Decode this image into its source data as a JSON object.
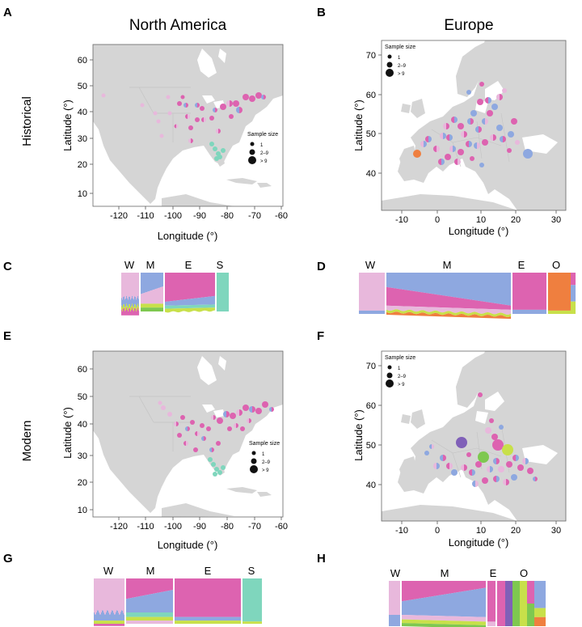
{
  "columns": {
    "left": "North America",
    "right": "Europe"
  },
  "rows": {
    "historical": "Historical",
    "modern": "Modern"
  },
  "panels": {
    "A": {
      "letter": "A",
      "xlabel": "Longitude (°)",
      "ylabel": "Latitude (°)",
      "xticks": [
        "-120",
        "-110",
        "-100",
        "-90",
        "-80",
        "-70",
        "-60"
      ],
      "yticks": [
        "60",
        "50",
        "40",
        "30",
        "20",
        "10"
      ],
      "legend": {
        "title": "Sample size",
        "items": [
          "1",
          "2–9",
          "> 9"
        ]
      }
    },
    "B": {
      "letter": "B",
      "xlabel": "Longitude (°)",
      "ylabel": "Latitude (°)",
      "xticks": [
        "-10",
        "0",
        "10",
        "20",
        "30"
      ],
      "yticks": [
        "70",
        "60",
        "50",
        "40"
      ],
      "legend": {
        "title": "Sample size",
        "items": [
          "1",
          "2–9",
          "> 9"
        ]
      }
    },
    "C": {
      "letter": "C",
      "groups": [
        "W",
        "M",
        "E",
        "S"
      ]
    },
    "D": {
      "letter": "D",
      "groups": [
        "W",
        "M",
        "E",
        "O"
      ]
    },
    "E": {
      "letter": "E",
      "xlabel": "Longitude (°)",
      "ylabel": "Latitude (°)",
      "xticks": [
        "-120",
        "-110",
        "-100",
        "-90",
        "-80",
        "-70",
        "-60"
      ],
      "yticks": [
        "60",
        "50",
        "40",
        "30",
        "20",
        "10"
      ],
      "legend": {
        "title": "Sample size",
        "items": [
          "1",
          "2–9",
          "> 9"
        ]
      }
    },
    "F": {
      "letter": "F",
      "xlabel": "Longitude (°)",
      "ylabel": "Latitude (°)",
      "xticks": [
        "-10",
        "0",
        "10",
        "20",
        "30"
      ],
      "yticks": [
        "70",
        "60",
        "50",
        "40"
      ],
      "legend": {
        "title": "Sample size",
        "items": [
          "1",
          "2–9",
          "> 9"
        ]
      }
    },
    "G": {
      "letter": "G",
      "groups": [
        "W",
        "M",
        "E",
        "S"
      ]
    },
    "H": {
      "letter": "H",
      "groups": [
        "W",
        "M",
        "E",
        "O"
      ]
    }
  },
  "colors": {
    "cluster_W": "#e8b8dc",
    "cluster_M": "#8ea8e0",
    "cluster_E": "#dd63b0",
    "cluster_S": "#7fd6bd",
    "cluster_O": "#ef7f3f",
    "cluster_Y": "#c8e04a",
    "cluster_G": "#7ec850",
    "cluster_P": "#8060b8",
    "land": "#d5d5d5"
  }
}
